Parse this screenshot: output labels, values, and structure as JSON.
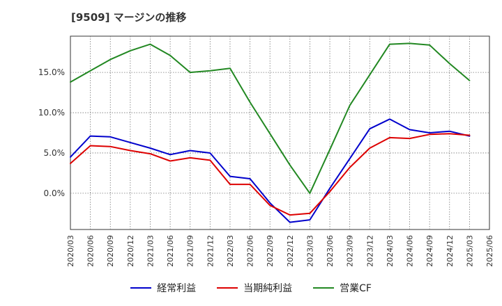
{
  "chart_data": {
    "type": "line",
    "title": "[9509]  マージンの推移",
    "x": [
      "2020/03",
      "2020/06",
      "2020/09",
      "2020/12",
      "2021/03",
      "2021/06",
      "2021/09",
      "2021/12",
      "2022/03",
      "2022/06",
      "2022/09",
      "2022/12",
      "2023/03",
      "2023/06",
      "2023/09",
      "2023/12",
      "2024/03",
      "2024/06",
      "2024/09",
      "2024/12",
      "2025/03",
      "2025/06"
    ],
    "yticks": [
      "0.0%",
      "5.0%",
      "10.0%",
      "15.0%"
    ],
    "ylim": [
      -4.5,
      19.5
    ],
    "grid": true,
    "legend_position": "bottom",
    "series": [
      {
        "name": "経常利益",
        "color": "#0000cc",
        "values": [
          4.5,
          7.1,
          7.0,
          6.3,
          5.6,
          4.8,
          5.3,
          5.0,
          2.1,
          1.8,
          -1.2,
          -3.6,
          -3.3,
          0.6,
          4.3,
          8.0,
          9.2,
          7.9,
          7.5,
          7.7,
          7.1,
          null
        ]
      },
      {
        "name": "当期純利益",
        "color": "#dd0000",
        "values": [
          3.7,
          5.9,
          5.8,
          5.3,
          4.9,
          4.0,
          4.4,
          4.1,
          1.1,
          1.1,
          -1.5,
          -2.7,
          -2.5,
          0.2,
          3.2,
          5.6,
          6.9,
          6.8,
          7.3,
          7.4,
          7.2,
          null
        ]
      },
      {
        "name": "営業CF",
        "color": "#228822",
        "values": [
          13.8,
          15.2,
          16.6,
          17.7,
          18.5,
          17.1,
          15.0,
          15.2,
          15.5,
          11.3,
          7.4,
          3.5,
          0.0,
          5.4,
          10.9,
          14.7,
          18.5,
          18.6,
          18.4,
          16.1,
          14.0,
          null
        ]
      }
    ]
  }
}
